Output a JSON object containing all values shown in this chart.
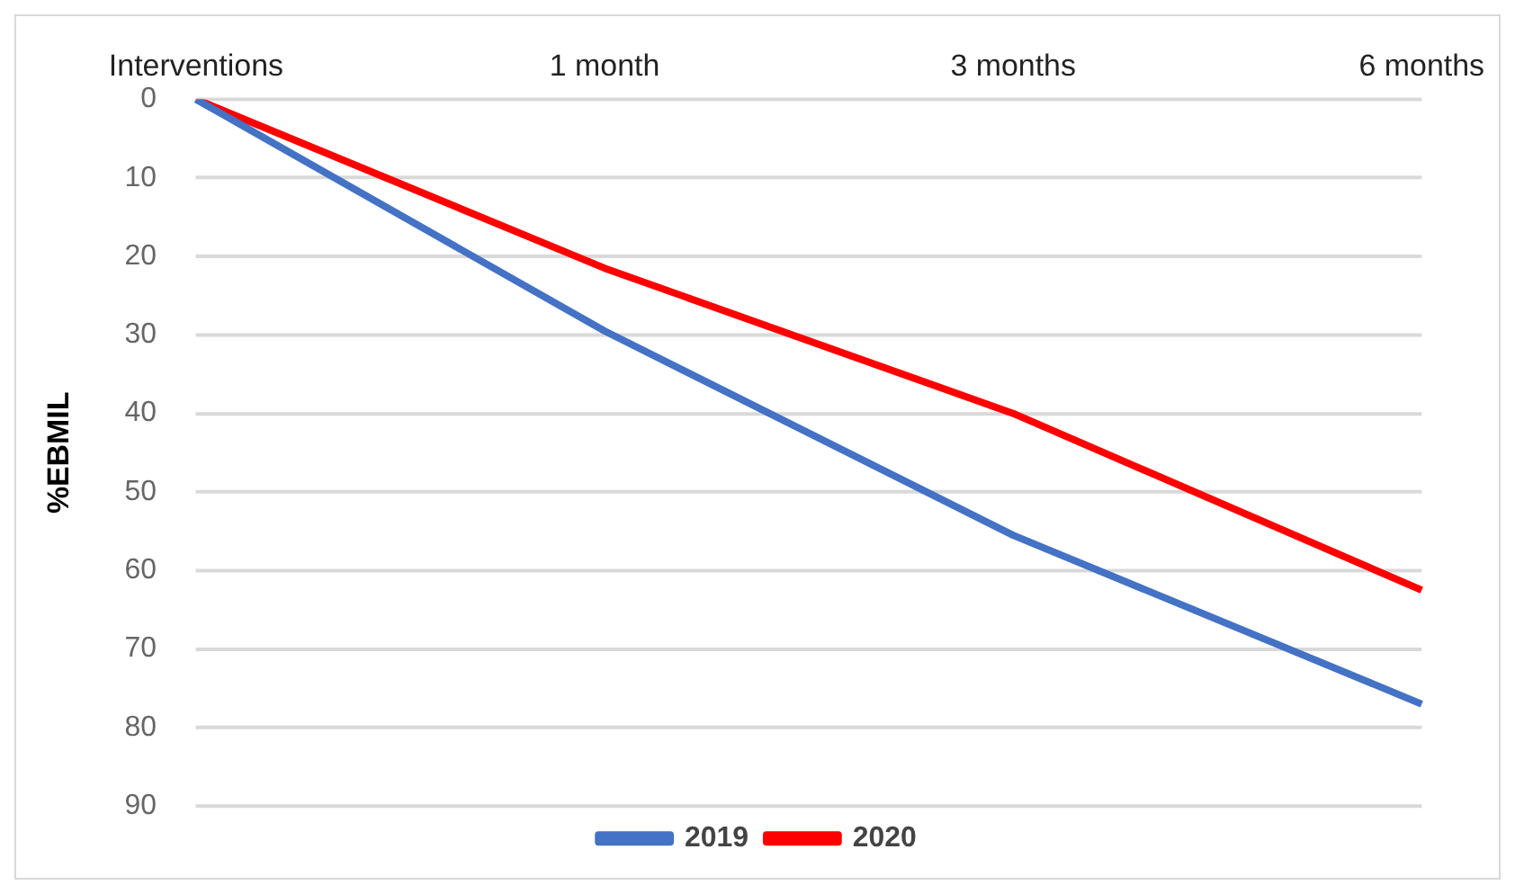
{
  "chart_data": {
    "type": "line",
    "ylabel": "%EBMIL",
    "categories": [
      "Interventions",
      "1 month",
      "3 months",
      "6 months"
    ],
    "series": [
      {
        "name": "2019",
        "color": "#4472c4",
        "values": [
          0,
          29.5,
          55.5,
          77
        ]
      },
      {
        "name": "2020",
        "color": "#ff0000",
        "values": [
          0,
          21.5,
          40,
          62.5
        ]
      }
    ],
    "ylim": [
      90,
      0
    ],
    "yticks": [
      0,
      10,
      20,
      30,
      40,
      50,
      60,
      70,
      80,
      90
    ],
    "grid": "y",
    "legend": "bottom",
    "marker": "none",
    "line_style": "solid"
  }
}
